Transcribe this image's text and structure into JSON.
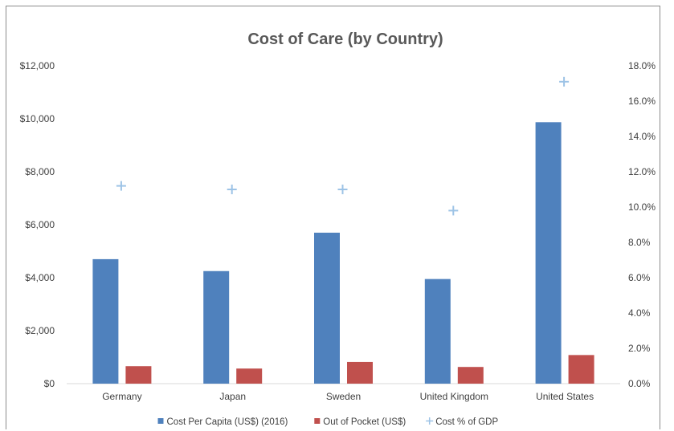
{
  "chart_data": {
    "type": "bar",
    "title": "Cost of Care (by Country)",
    "categories": [
      "Germany",
      "Japan",
      "Sweden",
      "United Kingdom",
      "United States"
    ],
    "series": [
      {
        "name": "Cost Per Capita (US$) (2016)",
        "kind": "bar",
        "axis": "left",
        "color": "#4f81bd",
        "values": [
          4700,
          4250,
          5700,
          3950,
          9870
        ]
      },
      {
        "name": "Out of Pocket (US$)",
        "kind": "bar",
        "axis": "left",
        "color": "#c0504d",
        "values": [
          660,
          570,
          820,
          630,
          1080
        ]
      },
      {
        "name": "Cost % of GDP",
        "kind": "marker",
        "marker": "plus",
        "axis": "right",
        "color": "#9dc3e6",
        "values": [
          11.2,
          11.0,
          11.0,
          9.8,
          17.1
        ]
      }
    ],
    "y_left": {
      "ylim": [
        0,
        12000
      ],
      "ticks": [
        0,
        2000,
        4000,
        6000,
        8000,
        10000,
        12000
      ],
      "tick_labels": [
        "$0",
        "$2,000",
        "$4,000",
        "$6,000",
        "$8,000",
        "$10,000",
        "$12,000"
      ]
    },
    "y_right": {
      "ylim": [
        0,
        18
      ],
      "ticks": [
        0,
        2,
        4,
        6,
        8,
        10,
        12,
        14,
        16,
        18
      ],
      "tick_labels": [
        "0.0%",
        "2.0%",
        "4.0%",
        "6.0%",
        "8.0%",
        "10.0%",
        "12.0%",
        "14.0%",
        "16.0%",
        "18.0%"
      ]
    },
    "grid": false,
    "legend_position": "bottom"
  }
}
